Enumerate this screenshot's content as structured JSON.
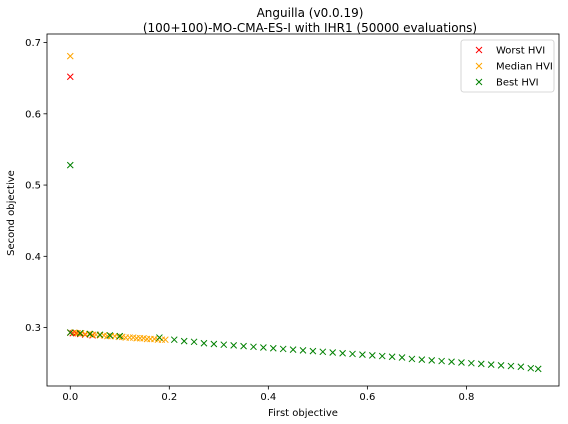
{
  "chart_data": {
    "type": "scatter",
    "title": "Anguilla (v0.0.19)",
    "subtitle": "(100+100)-MO-CMA-ES-I with IHR1 (50000 evaluations)",
    "xlabel": "First objective",
    "ylabel": "Second objective",
    "xlim": [
      -0.047,
      0.987
    ],
    "ylim": [
      0.218,
      0.712
    ],
    "xticks": [
      "0.0",
      "0.2",
      "0.4",
      "0.6",
      "0.8"
    ],
    "yticks": [
      "0.3",
      "0.4",
      "0.5",
      "0.6",
      "0.7"
    ],
    "grid": false,
    "legend_position": "top-right",
    "marker": "x",
    "series": [
      {
        "name": "Worst HVI",
        "color": "#ff0000",
        "points": [
          [
            0.0,
            0.652
          ],
          [
            0.0,
            0.293
          ],
          [
            0.005,
            0.292
          ],
          [
            0.012,
            0.292
          ],
          [
            0.02,
            0.291
          ],
          [
            0.03,
            0.29
          ],
          [
            0.045,
            0.289
          ]
        ]
      },
      {
        "name": "Median HVI",
        "color": "#ffa500",
        "points": [
          [
            0.0,
            0.681
          ],
          [
            0.0,
            0.293
          ],
          [
            0.008,
            0.293
          ],
          [
            0.015,
            0.292
          ],
          [
            0.022,
            0.292
          ],
          [
            0.03,
            0.291
          ],
          [
            0.038,
            0.291
          ],
          [
            0.045,
            0.29
          ],
          [
            0.052,
            0.29
          ],
          [
            0.06,
            0.289
          ],
          [
            0.068,
            0.289
          ],
          [
            0.075,
            0.288
          ],
          [
            0.082,
            0.288
          ],
          [
            0.09,
            0.288
          ],
          [
            0.098,
            0.287
          ],
          [
            0.105,
            0.287
          ],
          [
            0.112,
            0.286
          ],
          [
            0.12,
            0.286
          ],
          [
            0.127,
            0.286
          ],
          [
            0.134,
            0.285
          ],
          [
            0.141,
            0.285
          ],
          [
            0.148,
            0.285
          ],
          [
            0.155,
            0.284
          ],
          [
            0.162,
            0.284
          ],
          [
            0.17,
            0.284
          ],
          [
            0.177,
            0.283
          ],
          [
            0.185,
            0.283
          ],
          [
            0.192,
            0.283
          ]
        ]
      },
      {
        "name": "Best HVI",
        "color": "#008000",
        "points": [
          [
            0.0,
            0.528
          ],
          [
            0.0,
            0.293
          ],
          [
            0.02,
            0.292
          ],
          [
            0.04,
            0.291
          ],
          [
            0.06,
            0.29
          ],
          [
            0.08,
            0.289
          ],
          [
            0.1,
            0.288
          ],
          [
            0.18,
            0.286
          ],
          [
            0.21,
            0.283
          ],
          [
            0.23,
            0.281
          ],
          [
            0.25,
            0.28
          ],
          [
            0.27,
            0.278
          ],
          [
            0.29,
            0.277
          ],
          [
            0.31,
            0.276
          ],
          [
            0.33,
            0.275
          ],
          [
            0.35,
            0.274
          ],
          [
            0.37,
            0.273
          ],
          [
            0.39,
            0.272
          ],
          [
            0.41,
            0.271
          ],
          [
            0.43,
            0.27
          ],
          [
            0.45,
            0.269
          ],
          [
            0.47,
            0.268
          ],
          [
            0.49,
            0.267
          ],
          [
            0.51,
            0.266
          ],
          [
            0.53,
            0.265
          ],
          [
            0.55,
            0.264
          ],
          [
            0.57,
            0.263
          ],
          [
            0.59,
            0.262
          ],
          [
            0.61,
            0.261
          ],
          [
            0.63,
            0.26
          ],
          [
            0.65,
            0.259
          ],
          [
            0.67,
            0.258
          ],
          [
            0.69,
            0.256
          ],
          [
            0.71,
            0.255
          ],
          [
            0.73,
            0.254
          ],
          [
            0.75,
            0.253
          ],
          [
            0.77,
            0.252
          ],
          [
            0.79,
            0.251
          ],
          [
            0.81,
            0.25
          ],
          [
            0.83,
            0.249
          ],
          [
            0.85,
            0.248
          ],
          [
            0.87,
            0.247
          ],
          [
            0.89,
            0.246
          ],
          [
            0.91,
            0.245
          ],
          [
            0.93,
            0.243
          ],
          [
            0.945,
            0.242
          ]
        ]
      }
    ]
  }
}
